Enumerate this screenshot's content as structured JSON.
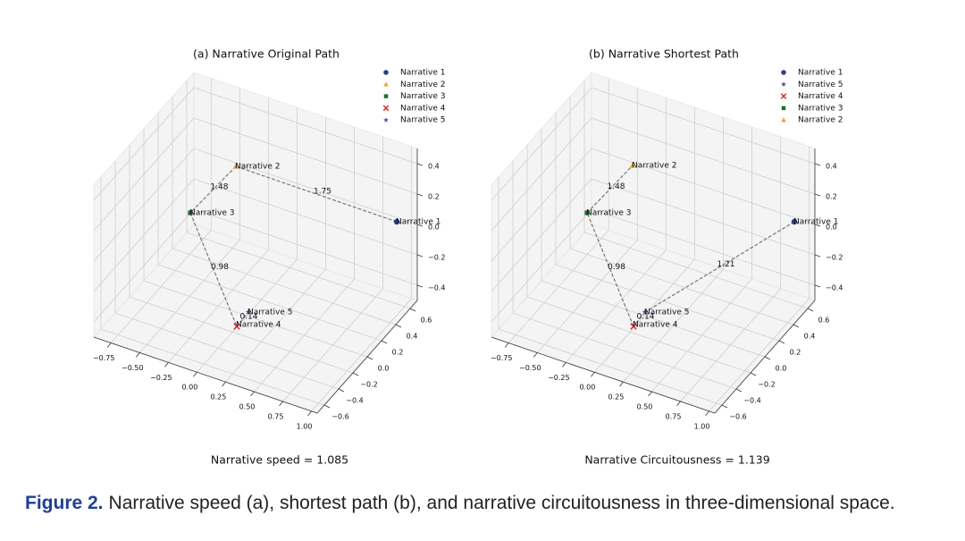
{
  "chart_data": [
    {
      "type": "scatter3d",
      "title": "(a) Narrative Original Path",
      "series": [
        {
          "name": "Narrative 1",
          "color": "#2c3e8c",
          "marker": "circle"
        },
        {
          "name": "Narrative 2",
          "color": "#f0a030",
          "marker": "triangle"
        },
        {
          "name": "Narrative 3",
          "color": "#1f6b30",
          "marker": "square"
        },
        {
          "name": "Narrative 4",
          "color": "#d62728",
          "marker": "x"
        },
        {
          "name": "Narrative 5",
          "color": "#6a3d9a",
          "marker": "star"
        }
      ],
      "path_values": [
        1.75,
        1.48,
        0.98,
        0.14
      ],
      "path_label_color": "#d9452b",
      "xlim": [
        -0.9,
        1.05
      ],
      "ylim": [
        -0.7,
        0.7
      ],
      "zlim": [
        -0.5,
        0.5
      ],
      "xticks": [
        {
          "value": -0.75,
          "label": "−0.75"
        },
        {
          "value": -0.5,
          "label": "−0.50"
        },
        {
          "value": -0.25,
          "label": "−0.25"
        },
        {
          "value": 0,
          "label": "0.00"
        },
        {
          "value": 0.25,
          "label": "0.25"
        },
        {
          "value": 0.5,
          "label": "0.50"
        },
        {
          "value": 0.75,
          "label": "0.75"
        },
        {
          "value": 1,
          "label": "1.00"
        }
      ],
      "yticks": [
        {
          "value": -0.6,
          "label": "−0.6"
        },
        {
          "value": -0.4,
          "label": "−0.4"
        },
        {
          "value": -0.2,
          "label": "−0.2"
        },
        {
          "value": 0,
          "label": "0.0"
        },
        0.2,
        0.4,
        0.6
      ],
      "zticks": [
        {
          "value": -0.4,
          "label": "−0.4"
        },
        {
          "value": -0.2,
          "label": "−0.2"
        },
        {
          "value": 0,
          "label": "0.0"
        },
        0.2,
        0.4
      ],
      "grid": true,
      "legend": "upper right",
      "annotation": "Narrative speed = 1.085"
    },
    {
      "type": "scatter3d",
      "title": "(b) Narrative Shortest Path",
      "series": [
        {
          "name": "Narrative 1",
          "color": "#2c3e8c",
          "marker": "circle"
        },
        {
          "name": "Narrative 5",
          "color": "#6a3d9a",
          "marker": "star"
        },
        {
          "name": "Narrative 4",
          "color": "#d62728",
          "marker": "x"
        },
        {
          "name": "Narrative 3",
          "color": "#1f6b30",
          "marker": "square"
        },
        {
          "name": "Narrative 2",
          "color": "#f0a030",
          "marker": "triangle"
        }
      ],
      "path_values": [
        1.21,
        0.14,
        0.98,
        1.48
      ],
      "path_label_color": "#4a4fa8",
      "xlim": [
        -0.9,
        1.05
      ],
      "ylim": [
        -0.7,
        0.7
      ],
      "zlim": [
        -0.5,
        0.5
      ],
      "xticks": [
        {
          "value": -0.75,
          "label": "−0.75"
        },
        {
          "value": -0.5,
          "label": "−0.50"
        },
        {
          "value": -0.25,
          "label": "−0.25"
        },
        {
          "value": 0,
          "label": "0.00"
        },
        {
          "value": 0.25,
          "label": "0.25"
        },
        {
          "value": 0.5,
          "label": "0.50"
        },
        {
          "value": 0.75,
          "label": "0.75"
        },
        {
          "value": 1,
          "label": "1.00"
        }
      ],
      "yticks": [
        {
          "value": -0.6,
          "label": "−0.6"
        },
        {
          "value": -0.4,
          "label": "−0.4"
        },
        {
          "value": -0.2,
          "label": "−0.2"
        },
        {
          "value": 0,
          "label": "0.0"
        },
        0.2,
        0.4,
        0.6
      ],
      "zticks": [
        {
          "value": -0.4,
          "label": "−0.4"
        },
        {
          "value": -0.2,
          "label": "−0.2"
        },
        {
          "value": 0,
          "label": "0.0"
        },
        0.2,
        0.4
      ],
      "grid": true,
      "legend": "upper right",
      "annotation": "Narrative Circuitousness = 1.139"
    }
  ],
  "caption": {
    "label": "Figure 2.",
    "text": "Narrative speed (a), shortest path (b), and narrative circuitousness in three-dimensional space."
  }
}
